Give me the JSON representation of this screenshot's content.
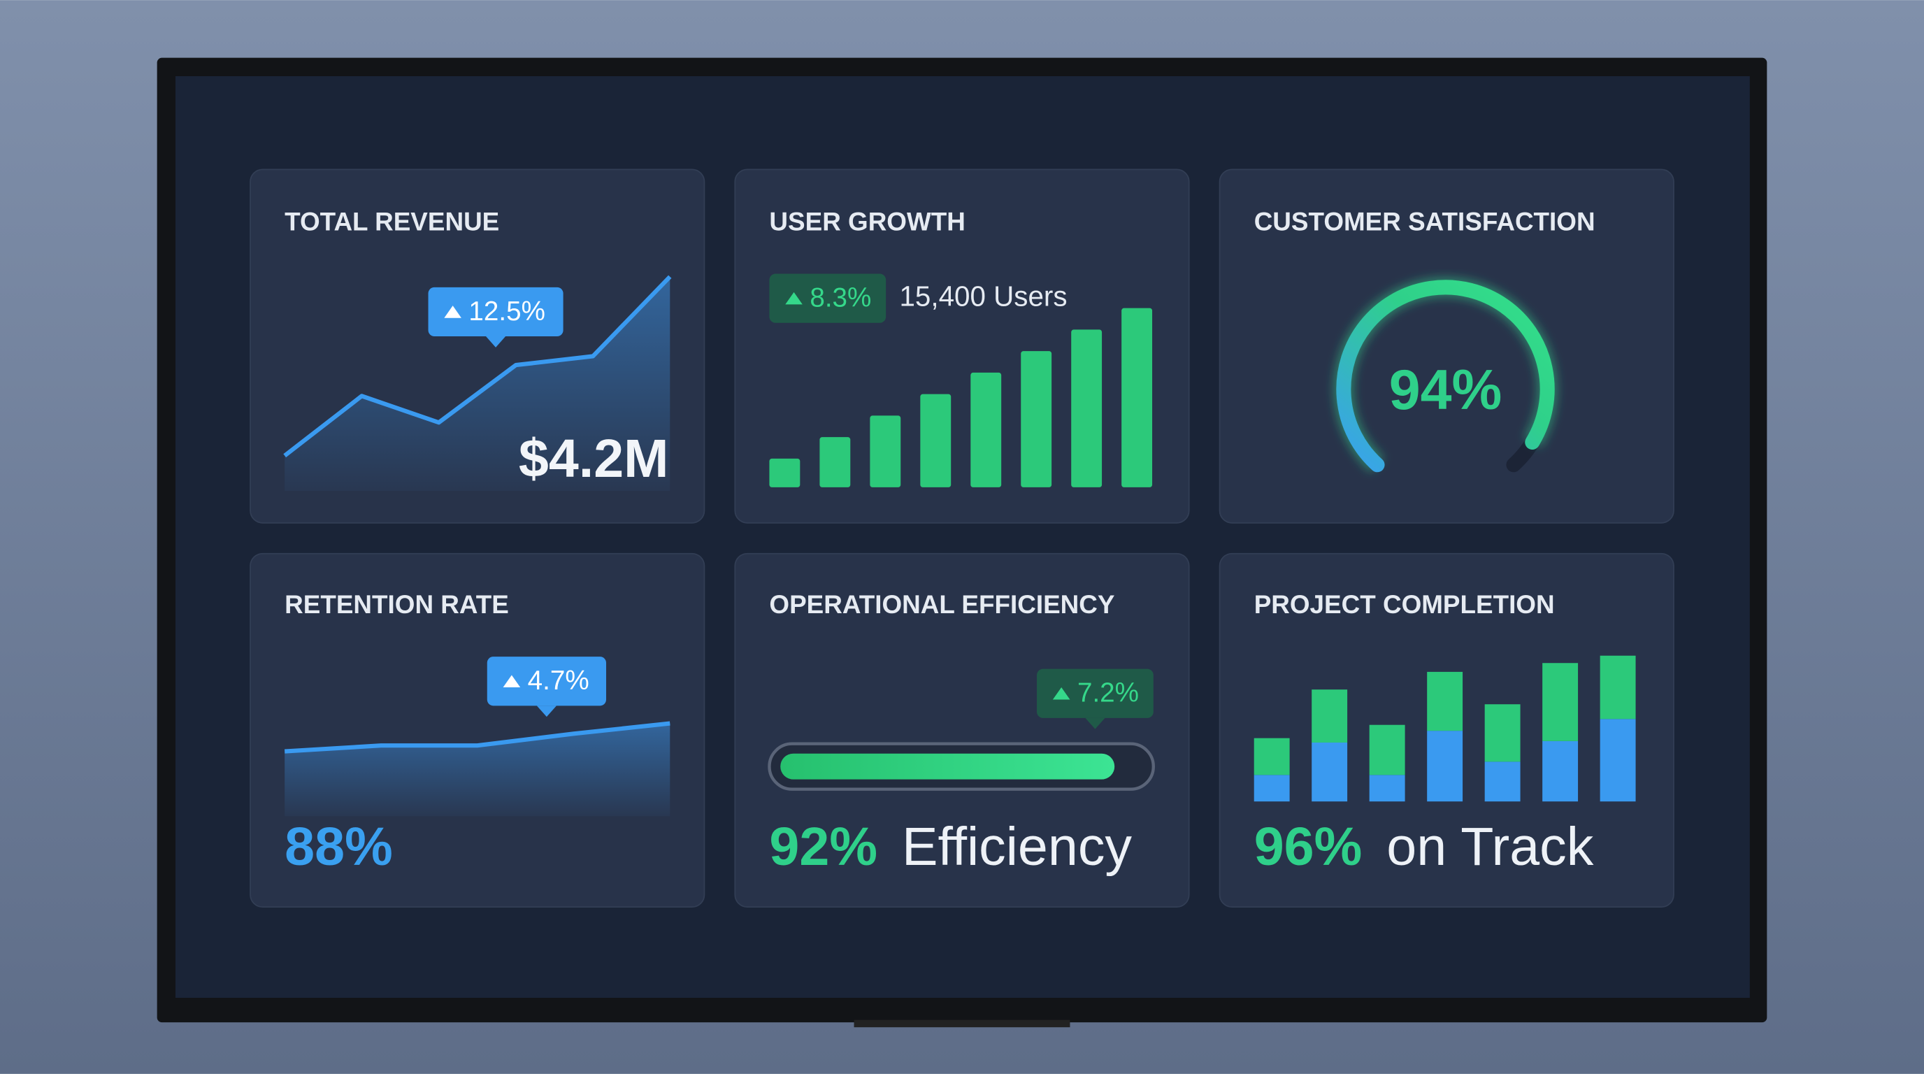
{
  "screen": {
    "cards": [
      {
        "title": "TOTAL REVENUE",
        "badge": "12.5%",
        "value": "$4.2M",
        "trend": [
          16,
          43,
          31,
          57,
          61,
          97
        ]
      },
      {
        "title": "USER GROWTH",
        "badge": "8.3%",
        "note": "15,400 Users",
        "bars": [
          16,
          28,
          40,
          52,
          64,
          76,
          88,
          100
        ]
      },
      {
        "title": "CUSTOMER SATISFACTION",
        "gauge": {
          "value": 94,
          "label": "94%"
        }
      },
      {
        "title": "RETENTION RATE",
        "badge": "4.7%",
        "value": "88%",
        "trend": [
          44,
          48,
          48,
          56,
          63
        ]
      },
      {
        "title": "OPERATIONAL EFFICIENCY",
        "badge": "7.2%",
        "progress": {
          "value": 92,
          "label": "92%"
        },
        "suffix": "Efficiency"
      },
      {
        "title": "PROJECT COMPLETION",
        "value": "96%",
        "suffix": "on Track",
        "stacks": {
          "blue": [
            18,
            40,
            18,
            48,
            27,
            41,
            56
          ],
          "green": [
            25,
            36,
            34,
            40,
            39,
            53,
            43
          ]
        }
      }
    ]
  }
}
